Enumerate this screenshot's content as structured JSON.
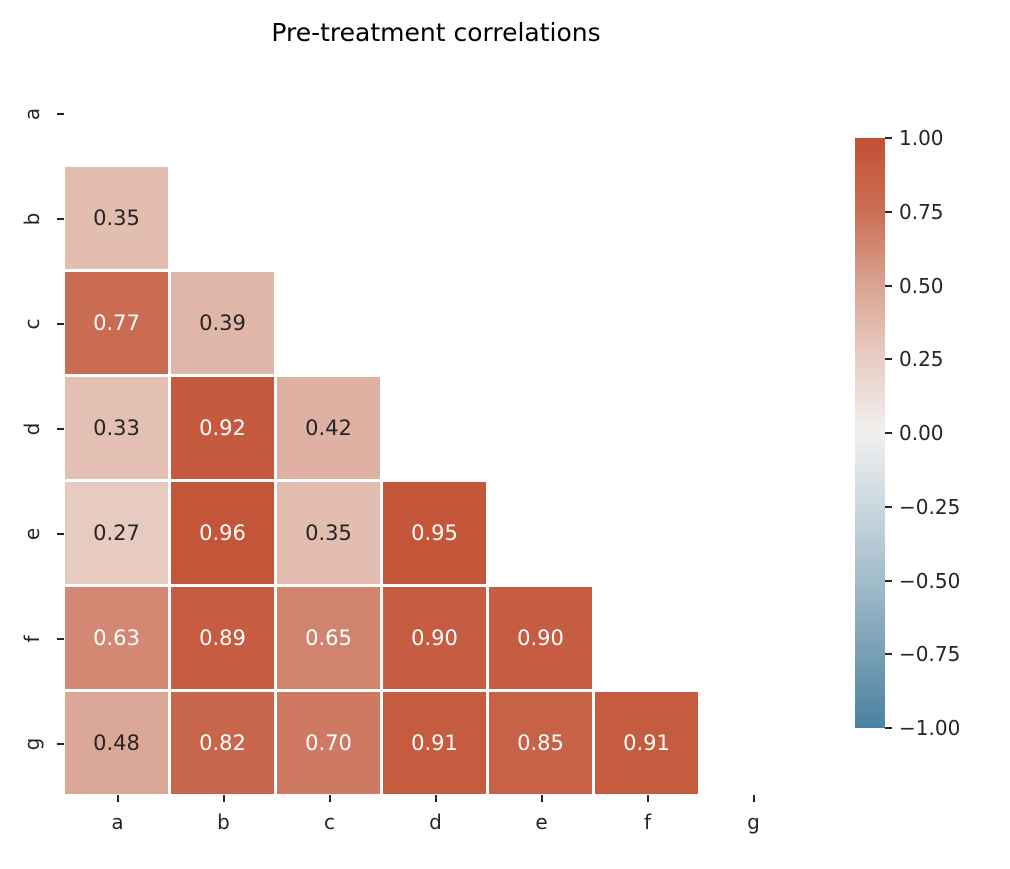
{
  "figure": {
    "title": "Pre-treatment correlations",
    "background_color": "#ffffff"
  },
  "chart_data": {
    "type": "heatmap",
    "title": "Pre-treatment correlations",
    "x_categories": [
      "a",
      "b",
      "c",
      "d",
      "e",
      "f",
      "g"
    ],
    "y_categories": [
      "a",
      "b",
      "c",
      "d",
      "e",
      "f",
      "g"
    ],
    "matrix": [
      [
        null,
        null,
        null,
        null,
        null,
        null,
        null
      ],
      [
        0.35,
        null,
        null,
        null,
        null,
        null,
        null
      ],
      [
        0.77,
        0.39,
        null,
        null,
        null,
        null,
        null
      ],
      [
        0.33,
        0.92,
        0.42,
        null,
        null,
        null,
        null
      ],
      [
        0.27,
        0.96,
        0.35,
        0.95,
        null,
        null,
        null
      ],
      [
        0.63,
        0.89,
        0.65,
        0.9,
        0.9,
        null,
        null
      ],
      [
        0.48,
        0.82,
        0.7,
        0.91,
        0.85,
        0.91,
        null
      ]
    ],
    "mask": "diagonal and upper triangle hidden",
    "annotation_decimals": 2,
    "vmin": -1,
    "vmax": 1,
    "grid_line_color": "#ffffff",
    "annotation_text_colors": {
      "light": "#ffffff",
      "dark": "#262626"
    },
    "colorbar": {
      "tick_labels": [
        "1.00",
        "0.75",
        "0.50",
        "0.25",
        "0.00",
        "−0.25",
        "−0.50",
        "−0.75",
        "−1.00"
      ],
      "tick_values": [
        1.0,
        0.75,
        0.5,
        0.25,
        0.0,
        -0.25,
        -0.5,
        -0.75,
        -1.0
      ]
    },
    "colormap_anchors": [
      {
        "v": -1.0,
        "color": "#4a82a0"
      },
      {
        "v": -0.75,
        "color": "#789fb5"
      },
      {
        "v": -0.5,
        "color": "#a2bcca"
      },
      {
        "v": -0.25,
        "color": "#cad8de"
      },
      {
        "v": 0.0,
        "color": "#f1f0ef"
      },
      {
        "v": 0.25,
        "color": "#e8cdc4"
      },
      {
        "v": 0.5,
        "color": "#daa492"
      },
      {
        "v": 0.75,
        "color": "#cb6e55"
      },
      {
        "v": 1.0,
        "color": "#c25033"
      }
    ]
  }
}
